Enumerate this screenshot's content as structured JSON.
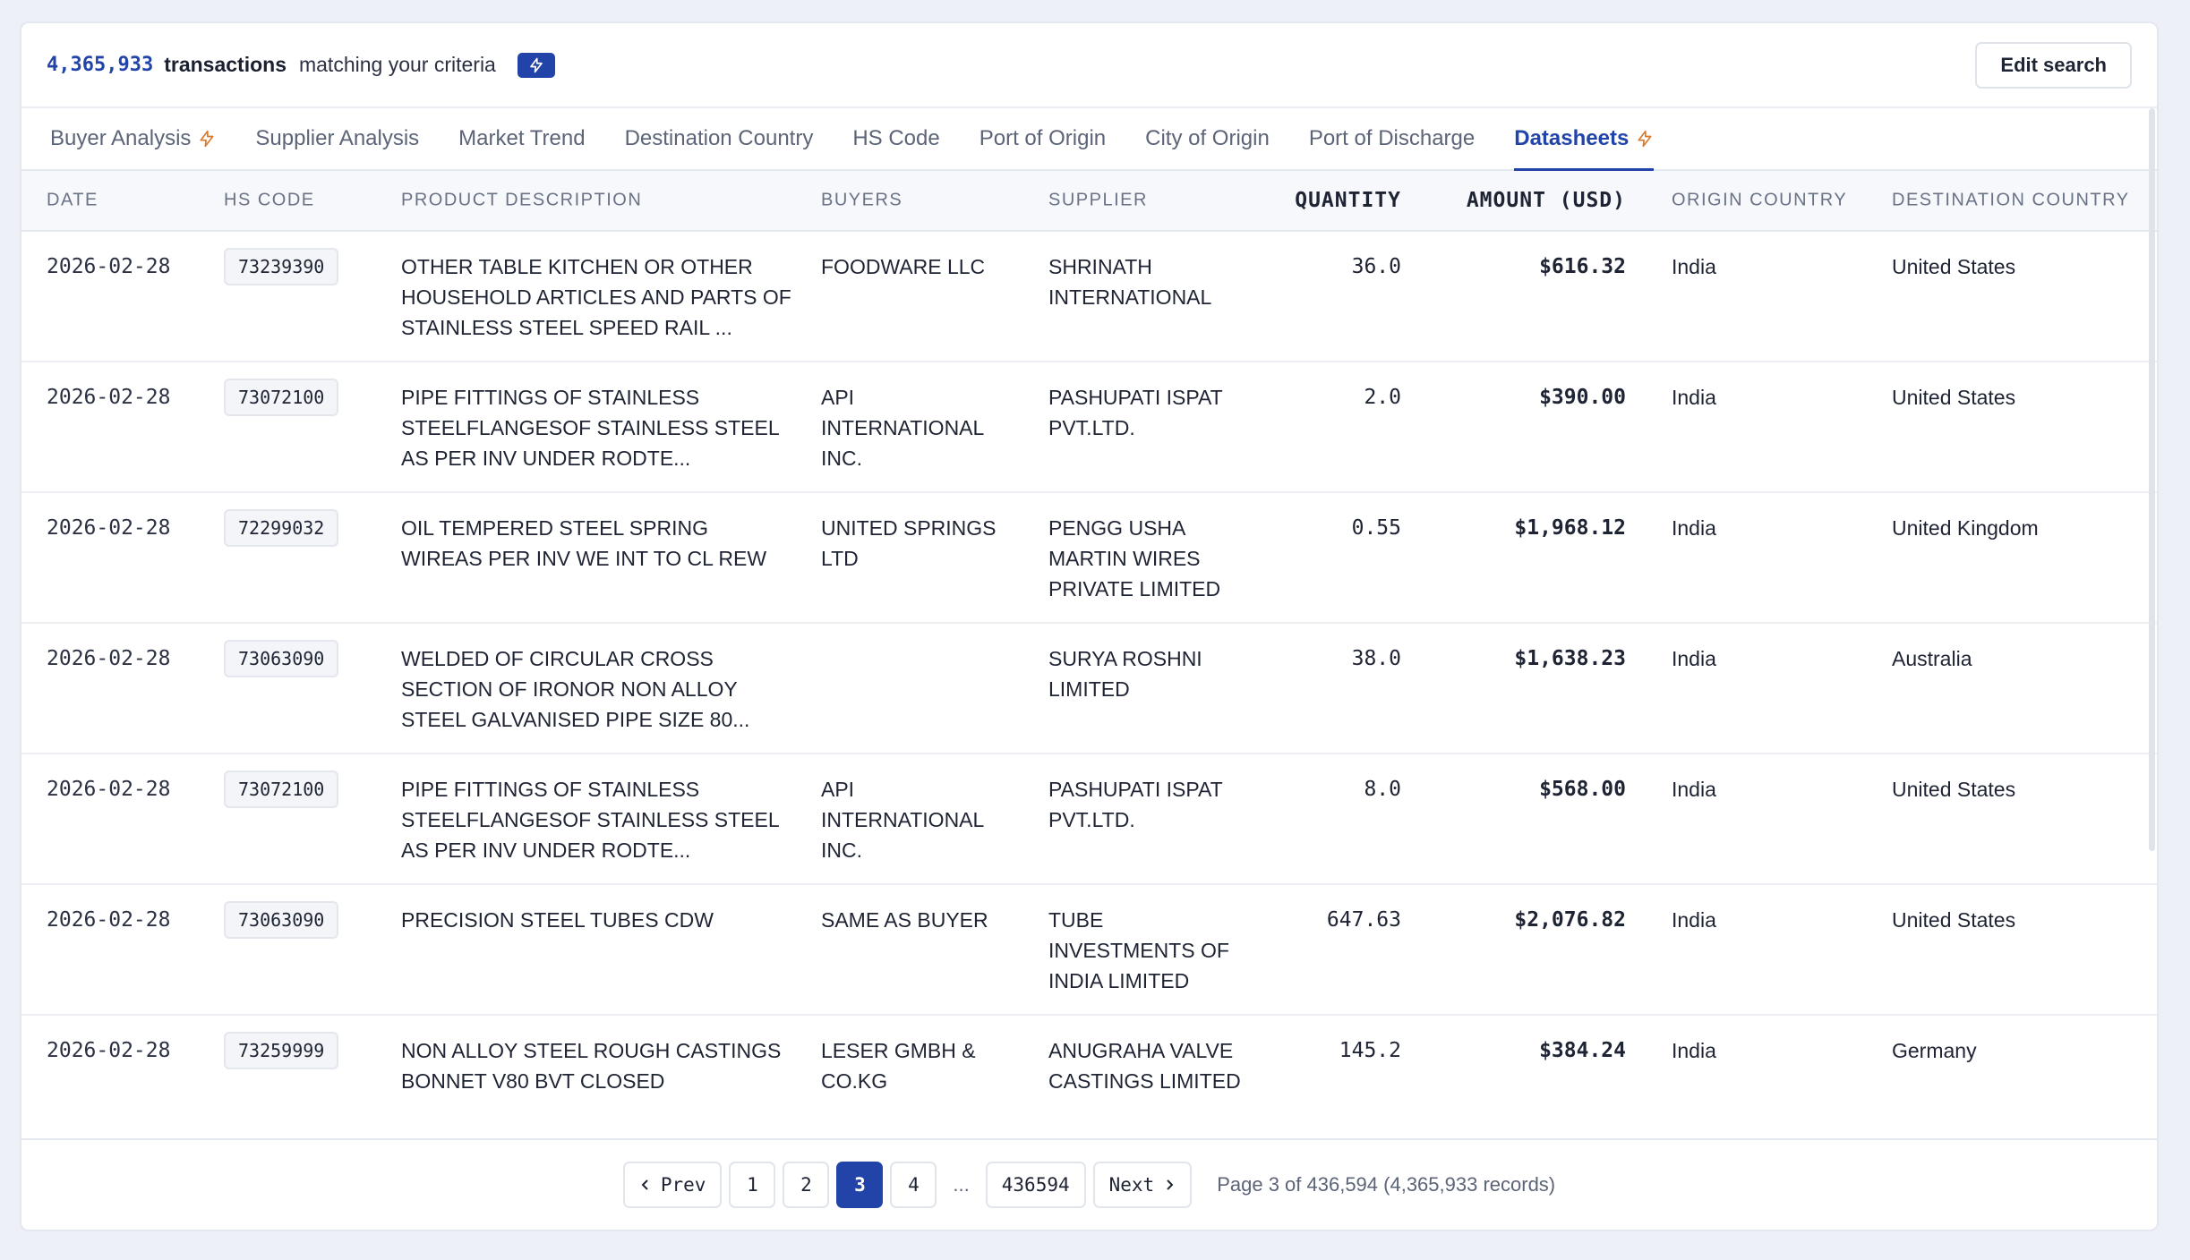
{
  "header": {
    "count": "4,365,933",
    "tx_word": "transactions",
    "tx_rest": "matching your criteria",
    "edit_label": "Edit search"
  },
  "tabs": [
    {
      "label": "Buyer Analysis",
      "bolt": true
    },
    {
      "label": "Supplier Analysis"
    },
    {
      "label": "Market Trend"
    },
    {
      "label": "Destination Country"
    },
    {
      "label": "HS Code"
    },
    {
      "label": "Port of Origin"
    },
    {
      "label": "City of Origin"
    },
    {
      "label": "Port of Discharge"
    },
    {
      "label": "Datasheets",
      "bolt": true,
      "active": true
    }
  ],
  "columns": {
    "date": "DATE",
    "hs": "HS CODE",
    "desc": "PRODUCT DESCRIPTION",
    "buyers": "BUYERS",
    "supplier": "SUPPLIER",
    "qty": "QUANTITY",
    "amt": "AMOUNT (USD)",
    "origin": "ORIGIN COUNTRY",
    "dest": "DESTINATION COUNTRY"
  },
  "rows": [
    {
      "date": "2026-02-28",
      "hs": "73239390",
      "desc": "OTHER TABLE KITCHEN OR OTHER HOUSEHOLD ARTICLES AND PARTS OF STAINLESS STEEL SPEED RAIL ...",
      "buyer": "FOODWARE LLC",
      "supplier": "SHRINATH INTERNATIONAL",
      "qty": "36.0",
      "amt": "$616.32",
      "origin": "India",
      "dest": "United States"
    },
    {
      "date": "2026-02-28",
      "hs": "73072100",
      "desc": "PIPE FITTINGS OF STAINLESS STEELFLANGESOF STAINLESS STEEL AS PER INV UNDER RODTE...",
      "buyer": "API INTERNATIONAL INC.",
      "supplier": "PASHUPATI ISPAT PVT.LTD.",
      "qty": "2.0",
      "amt": "$390.00",
      "origin": "India",
      "dest": "United States"
    },
    {
      "date": "2026-02-28",
      "hs": "72299032",
      "desc": "OIL TEMPERED STEEL SPRING WIREAS PER INV WE INT TO CL REW",
      "buyer": "UNITED SPRINGS LTD",
      "supplier": "PENGG USHA MARTIN WIRES PRIVATE LIMITED",
      "qty": "0.55",
      "amt": "$1,968.12",
      "origin": "India",
      "dest": "United Kingdom"
    },
    {
      "date": "2026-02-28",
      "hs": "73063090",
      "desc": "WELDED OF CIRCULAR CROSS SECTION OF IRONOR NON ALLOY STEEL GALVANISED PIPE SIZE 80...",
      "buyer": "",
      "supplier": "SURYA ROSHNI LIMITED",
      "qty": "38.0",
      "amt": "$1,638.23",
      "origin": "India",
      "dest": "Australia"
    },
    {
      "date": "2026-02-28",
      "hs": "73072100",
      "desc": "PIPE FITTINGS OF STAINLESS STEELFLANGESOF STAINLESS STEEL AS PER INV UNDER RODTE...",
      "buyer": "API INTERNATIONAL INC.",
      "supplier": "PASHUPATI ISPAT PVT.LTD.",
      "qty": "8.0",
      "amt": "$568.00",
      "origin": "India",
      "dest": "United States"
    },
    {
      "date": "2026-02-28",
      "hs": "73063090",
      "desc": "PRECISION STEEL TUBES CDW",
      "buyer": "SAME AS BUYER",
      "supplier": "TUBE INVESTMENTS OF INDIA LIMITED",
      "qty": "647.63",
      "amt": "$2,076.82",
      "origin": "India",
      "dest": "United States"
    },
    {
      "date": "2026-02-28",
      "hs": "73259999",
      "desc": "NON ALLOY STEEL ROUGH CASTINGS BONNET V80 BVT CLOSED",
      "buyer": "LESER GMBH & CO.KG",
      "supplier": "ANUGRAHA VALVE CASTINGS LIMITED",
      "qty": "145.2",
      "amt": "$384.24",
      "origin": "India",
      "dest": "Germany"
    }
  ],
  "pagination": {
    "prev": "Prev",
    "next": "Next",
    "pages": [
      "1",
      "2",
      "3",
      "4"
    ],
    "active": "3",
    "ellipsis": "...",
    "last": "436594",
    "info": "Page 3 of 436,594 (4,365,933 records)"
  },
  "colors": {
    "accent": "#2244a8",
    "bolt": "#d9792b"
  },
  "icons": {
    "bolt": "lightning-bolt-icon",
    "prev": "chevron-left-icon",
    "next": "chevron-right-icon"
  }
}
